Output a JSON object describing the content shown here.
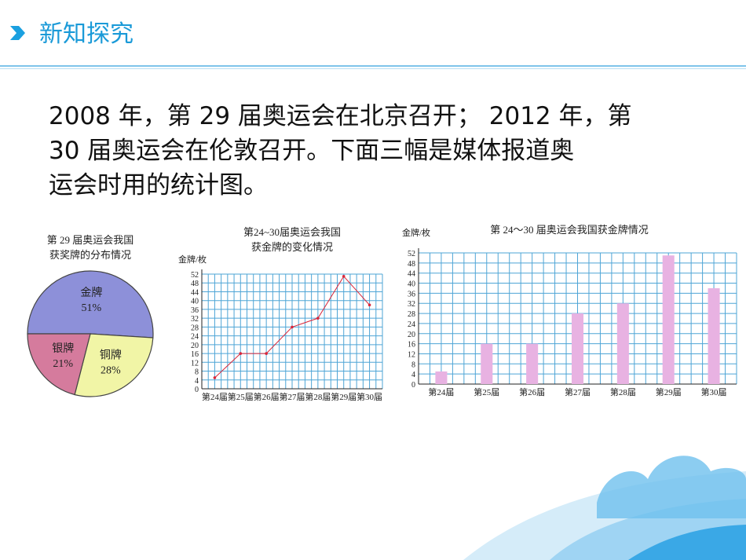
{
  "header": {
    "title": "新知探究"
  },
  "paragraph": {
    "lines": [
      "2008 年，第 29 届奥运会在北京召开； 2012 年，第",
      "30 届奥运会在伦敦召开。下面三幅是媒体报道奥",
      "运会时用的统计图。"
    ]
  },
  "chart_data": [
    {
      "type": "pie",
      "title": [
        "第 29 届奥运会我国",
        "获奖牌的分布情况"
      ],
      "categories": [
        "金牌",
        "铜牌",
        "银牌"
      ],
      "values": [
        51,
        28,
        21
      ],
      "value_labels": [
        "51%",
        "28%",
        "21%"
      ],
      "colors": [
        "#8d90d9",
        "#f1f5a6",
        "#d57b9d"
      ]
    },
    {
      "type": "line",
      "title": [
        "第24~30届奥运会我国",
        "获金牌的变化情况"
      ],
      "y_label": "金牌/枚",
      "categories": [
        "第24届",
        "第25届",
        "第26届",
        "第27届",
        "第28届",
        "第29届",
        "第30届"
      ],
      "values": [
        5,
        16,
        16,
        28,
        32,
        51,
        38
      ],
      "color": "#d9263a",
      "ylim": [
        0,
        52
      ],
      "yticks": [
        0,
        4,
        8,
        12,
        16,
        20,
        24,
        28,
        32,
        36,
        40,
        44,
        48,
        52
      ],
      "grid": true
    },
    {
      "type": "bar",
      "title": [
        "第 24～30 届奥运会我国获金牌情况"
      ],
      "y_label": "金牌/枚",
      "categories": [
        "第24届",
        "第25届",
        "第26届",
        "第27届",
        "第28届",
        "第29届",
        "第30届"
      ],
      "values": [
        5,
        16,
        16,
        28,
        32,
        51,
        38
      ],
      "color": "#e8b2e2",
      "ylim": [
        0,
        52
      ],
      "yticks": [
        0,
        4,
        8,
        12,
        16,
        20,
        24,
        28,
        32,
        36,
        40,
        44,
        48,
        52
      ],
      "grid": true
    }
  ]
}
